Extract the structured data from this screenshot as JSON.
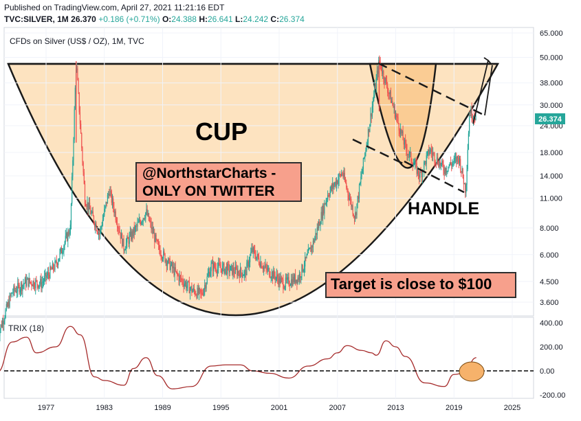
{
  "header": {
    "published": "Published on TradingView.com, April 27, 2021 11:21:16 EDT",
    "symbol": "TVC:SILVER, 1M",
    "price": "26.370",
    "change": "+0.186 (+0.71%)",
    "open_label": "O:",
    "open": "24.388",
    "high_label": "H:",
    "high": "26.641",
    "low_label": "L:",
    "low": "24.242",
    "close_label": "C:",
    "close": "26.374"
  },
  "legend_title": "CFDs on Silver (US$ / OZ), 1M, TVC",
  "annotations": {
    "cup": "CUP",
    "handle": "HANDLE",
    "twitter_line1": "@NorthstarCharts -",
    "twitter_line2": "ONLY ON TWITTER",
    "target": "Target is close to $100"
  },
  "colors": {
    "up_candle": "#26a69a",
    "down_candle": "#ef5350",
    "cup_fill": "#fde3c0",
    "handle_fill": "#f9c98f",
    "annotation_box": "#f7a08c",
    "trix_line": "#a52a2a",
    "price_tag": "#26a69a"
  },
  "price_tag": "26.374",
  "chart_data": [
    {
      "type": "candlestick",
      "title": "CFDs on Silver (US$ / OZ), 1M, TVC",
      "y_scale": "log",
      "y_ticks": [
        "65.000",
        "50.000",
        "38.000",
        "30.000",
        "24.000",
        "18.000",
        "14.000",
        "11.000",
        "8.000",
        "6.000",
        "4.500",
        "3.600"
      ],
      "y_tick_values": [
        65,
        50,
        38,
        30,
        24,
        18,
        14,
        11,
        8,
        6,
        4.5,
        3.6
      ],
      "x_ticks": [
        "1977",
        "1983",
        "1989",
        "1995",
        "2001",
        "2007",
        "2013",
        "2019",
        "2025"
      ],
      "x_tick_values": [
        1977,
        1983,
        1989,
        1995,
        2001,
        2007,
        2013,
        2019,
        2025
      ],
      "x": [
        1972.0,
        1973.5,
        1975.0,
        1976.5,
        1978.0,
        1979.5,
        1980.1,
        1981.0,
        1982.5,
        1983.5,
        1985.0,
        1987.3,
        1988.5,
        1990.5,
        1992.0,
        1993.0,
        1994.0,
        1996.0,
        1997.5,
        1998.2,
        1999.5,
        2001.5,
        2003.0,
        2004.5,
        2006.0,
        2007.5,
        2008.8,
        2010.0,
        2011.3,
        2012.5,
        2014.0,
        2015.5,
        2016.5,
        2018.0,
        2019.5,
        2020.2,
        2020.6,
        2021.3
      ],
      "values": [
        2.5,
        4.0,
        4.5,
        4.4,
        5.4,
        8.0,
        48.0,
        11.0,
        7.5,
        12.0,
        6.5,
        9.5,
        6.5,
        4.8,
        4.1,
        3.9,
        5.3,
        5.1,
        4.9,
        6.3,
        5.2,
        4.4,
        4.7,
        6.8,
        11.5,
        14.5,
        9.0,
        20.0,
        48.0,
        32.0,
        19.0,
        14.0,
        18.5,
        15.0,
        17.0,
        12.0,
        28.0,
        26.374
      ]
    },
    {
      "type": "line",
      "title": "TRIX (18)",
      "y_ticks": [
        "400.00",
        "200.00",
        "0.00",
        "-200.00"
      ],
      "y_tick_values": [
        400,
        200,
        0,
        -200
      ],
      "x": [
        1972,
        1973.5,
        1975,
        1976,
        1978,
        1979.5,
        1980.5,
        1982,
        1983,
        1985,
        1986,
        1987.3,
        1988.5,
        1990,
        1992,
        1994,
        1995.5,
        1997,
        1998.3,
        2000,
        2002,
        2004,
        2006,
        2007,
        2008,
        2009.5,
        2010.5,
        2011,
        2012,
        2013,
        2014,
        2016,
        2018,
        2019,
        2020,
        2021.3
      ],
      "values": [
        -10,
        240,
        280,
        150,
        200,
        370,
        300,
        -50,
        -80,
        -120,
        20,
        110,
        -40,
        -150,
        -130,
        40,
        50,
        50,
        0,
        -20,
        -60,
        40,
        100,
        150,
        210,
        170,
        150,
        130,
        250,
        200,
        120,
        -100,
        -130,
        -30,
        -20,
        110
      ],
      "ylim": [
        -220,
        410
      ]
    }
  ]
}
